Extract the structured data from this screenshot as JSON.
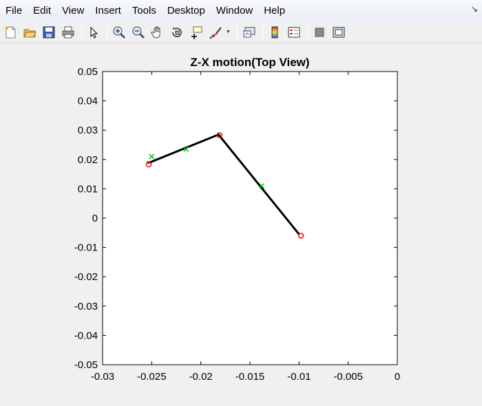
{
  "menubar": {
    "items": [
      "File",
      "Edit",
      "View",
      "Insert",
      "Tools",
      "Desktop",
      "Window",
      "Help"
    ]
  },
  "toolbar": {
    "icons": [
      "new-figure-icon",
      "open-file-icon",
      "save-icon",
      "print-icon",
      "select-arrow-icon",
      "zoom-in-icon",
      "zoom-out-icon",
      "pan-hand-icon",
      "rotate-3d-icon",
      "data-cursor-icon",
      "brush-icon",
      "link-plot-icon",
      "colorbar-icon",
      "legend-icon",
      "hide-plot-tools-icon",
      "show-plot-tools-icon"
    ]
  },
  "colors": {
    "line": "#000000",
    "o_marker": "#ff0000",
    "x_marker": "#00cc00",
    "axes_bg": "#ffffff"
  },
  "chart_data": {
    "type": "line",
    "title": "Z-X motion(Top View)",
    "xlabel": "",
    "ylabel": "",
    "xlim": [
      -0.03,
      0
    ],
    "ylim": [
      -0.05,
      0.05
    ],
    "xticks": [
      "-0.03",
      "-0.025",
      "-0.02",
      "-0.015",
      "-0.01",
      "-0.005",
      "0"
    ],
    "yticks": [
      "0.05",
      "0.04",
      "0.03",
      "0.02",
      "0.01",
      "0",
      "-0.01",
      "-0.02",
      "-0.03",
      "-0.04",
      "-0.05"
    ],
    "grid": false,
    "series": [
      {
        "style": "line",
        "color": "#000000",
        "x": [
          -0.0255,
          -0.0252,
          -0.0182,
          -0.01
        ],
        "y": [
          0.019,
          0.019,
          0.0285,
          -0.0055
        ]
      },
      {
        "style": "markers-o",
        "color": "#ff0000",
        "x": [
          -0.0253,
          -0.0181,
          -0.0098
        ],
        "y": [
          0.0183,
          0.0283,
          -0.006
        ]
      },
      {
        "style": "markers-x",
        "color": "#00cc00",
        "x": [
          -0.025,
          -0.0215,
          -0.0138
        ],
        "y": [
          0.021,
          0.0235,
          0.011
        ]
      }
    ]
  }
}
